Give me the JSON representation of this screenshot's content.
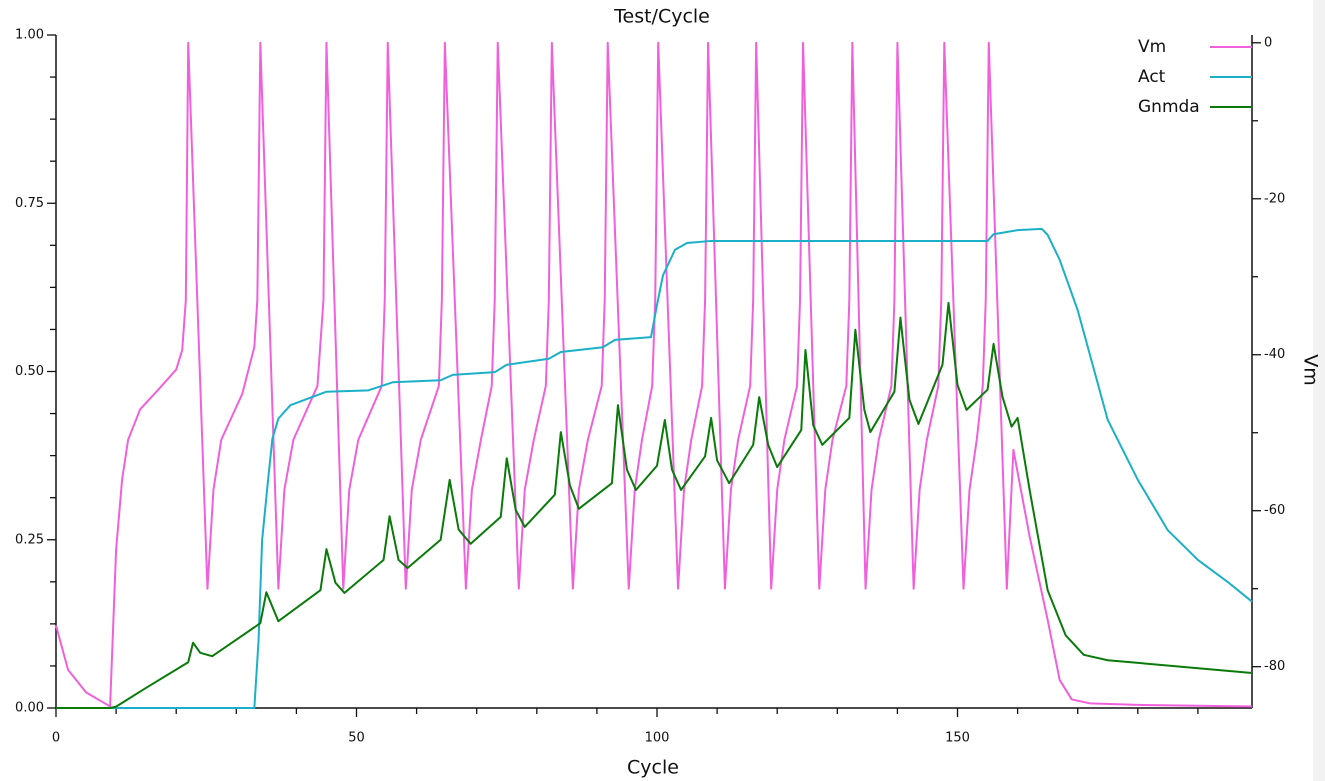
{
  "chart_data": {
    "type": "line",
    "title": "Test/Cycle",
    "x_label": "Cycle",
    "y2_label": "Vm",
    "xlim": [
      0,
      199
    ],
    "xticks": [
      0,
      50,
      100,
      150
    ],
    "xminorticks": [
      10,
      20,
      30,
      40,
      60,
      70,
      80,
      90,
      110,
      120,
      130,
      140,
      160,
      170,
      180,
      190
    ],
    "ylim": [
      0,
      1
    ],
    "yticks": [
      {
        "value": 0,
        "label": "0.00"
      },
      {
        "value": 0.25,
        "label": "0.25"
      },
      {
        "value": 0.5,
        "label": "0.50"
      },
      {
        "value": 0.75,
        "label": "0.75"
      },
      {
        "value": 1,
        "label": "1.00"
      }
    ],
    "yminorticks": [
      0.0625,
      0.125,
      0.1875,
      0.3125,
      0.375,
      0.4375,
      0.5625,
      0.625,
      0.6875,
      0.8125,
      0.875,
      0.9375
    ],
    "y2lim": [
      -85.3,
      1.0
    ],
    "y2ticks": [
      0,
      -20,
      -40,
      -60,
      -80
    ],
    "y2minorticks": [
      -10,
      -30,
      -50,
      -70
    ],
    "legend": "top-right",
    "series": [
      {
        "name": "Vm",
        "color": "#f060dc",
        "axis": "y2",
        "x": [
          0,
          2,
          5,
          9,
          10,
          11,
          12,
          14,
          17,
          20,
          21,
          21.6,
          22,
          25.2,
          26.2,
          27.5,
          31,
          33,
          33.5,
          34,
          37,
          38,
          39.5,
          43.5,
          44.5,
          45,
          47.8,
          48.8,
          50.3,
          54.2,
          54.7,
          55.2,
          58.2,
          59.2,
          60.7,
          63.7,
          64.2,
          64.7,
          68.2,
          69.2,
          70.7,
          72.5,
          73,
          73.5,
          77,
          78,
          79.5,
          81.5,
          82,
          82.5,
          86,
          87,
          88.5,
          90.8,
          91.3,
          91.8,
          95.3,
          96.3,
          97.5,
          99.2,
          99.7,
          100.2,
          103.5,
          104.5,
          105.7,
          107.5,
          108,
          108.5,
          111.3,
          112.3,
          113.5,
          115.5,
          116,
          116.5,
          119,
          120,
          121.2,
          123.3,
          123.8,
          124.3,
          127,
          128,
          129.2,
          131.5,
          132,
          132.5,
          134.7,
          135.7,
          136.9,
          139,
          139.5,
          140,
          142.7,
          143.7,
          144.9,
          146.8,
          147.3,
          147.8,
          151,
          152,
          153.2,
          154.2,
          154.7,
          155.2,
          158.2,
          159.3,
          162,
          165,
          167,
          169,
          172,
          180,
          199
        ],
        "values": [
          -74.7,
          -80.4,
          -83.3,
          -85.1,
          -65,
          -56,
          -50.9,
          -47,
          -44.5,
          -41.9,
          -39.4,
          -33,
          0,
          -70,
          -57.3,
          -50.9,
          -45,
          -39,
          -33,
          0,
          -70,
          -57.3,
          -50.9,
          -44,
          -33,
          0,
          -70,
          -57.3,
          -50.9,
          -44,
          -33,
          0,
          -70,
          -57.3,
          -50.9,
          -44,
          -33,
          0,
          -70,
          -57.3,
          -50.9,
          -44,
          -33,
          0,
          -70,
          -57.3,
          -50.9,
          -44,
          -33,
          0,
          -70,
          -57.3,
          -50.9,
          -44,
          -33,
          0,
          -70,
          -57.3,
          -50.9,
          -44,
          -33,
          0,
          -70,
          -57.3,
          -50.9,
          -44,
          -33,
          0,
          -70,
          -57.3,
          -50.9,
          -44,
          -33,
          0,
          -70,
          -57.3,
          -50.9,
          -44,
          -33,
          0,
          -70,
          -57.3,
          -50.9,
          -44,
          -33,
          0,
          -70,
          -57.3,
          -50.9,
          -44,
          -33,
          0,
          -70,
          -57.3,
          -50.9,
          -44,
          -33,
          0,
          -70,
          -57.3,
          -50.9,
          -44,
          -33,
          0,
          -70,
          -52.2,
          -63.3,
          -74,
          -81.7,
          -84.2,
          -84.7,
          -84.9,
          -85.1
        ]
      },
      {
        "name": "Act",
        "color": "#1ab0c8",
        "x": [
          0,
          33,
          33.7,
          34.3,
          35.3,
          36,
          37,
          39,
          42,
          45,
          52,
          54,
          56,
          64,
          66,
          73,
          75,
          82,
          84,
          91,
          93,
          99,
          100,
          101,
          103,
          105,
          109,
          155,
          156,
          160,
          164,
          165,
          167,
          170,
          175,
          180,
          185,
          190,
          195,
          199
        ],
        "values": [
          0,
          0,
          0.1,
          0.25,
          0.34,
          0.4,
          0.43,
          0.45,
          0.46,
          0.47,
          0.472,
          0.478,
          0.484,
          0.487,
          0.495,
          0.499,
          0.51,
          0.519,
          0.529,
          0.536,
          0.547,
          0.551,
          0.599,
          0.643,
          0.681,
          0.691,
          0.694,
          0.694,
          0.704,
          0.71,
          0.712,
          0.703,
          0.666,
          0.591,
          0.428,
          0.339,
          0.264,
          0.22,
          0.187,
          0.158
        ]
      },
      {
        "name": "Gnmda",
        "color": "#0a7a0a",
        "x": [
          0,
          9,
          10,
          15,
          22,
          22.8,
          24,
          26,
          34,
          35,
          37,
          44,
          45,
          46.5,
          48,
          54.5,
          55.5,
          57,
          58.5,
          64,
          65.5,
          67,
          69,
          74,
          75,
          76.5,
          78,
          83,
          84,
          85.5,
          87,
          92.5,
          93.5,
          95,
          96.5,
          100,
          101.3,
          102.5,
          104,
          108,
          109,
          110,
          112,
          116,
          117,
          118.5,
          120,
          124,
          124.7,
          126,
          127.5,
          132,
          133,
          134.5,
          135.5,
          139.5,
          140.5,
          142,
          143.5,
          147.5,
          148.5,
          150,
          151.5,
          155,
          156,
          157.5,
          159,
          160,
          162,
          165,
          168,
          171,
          175,
          199
        ],
        "values": [
          0,
          0,
          0.002,
          0.03,
          0.068,
          0.097,
          0.082,
          0.077,
          0.126,
          0.172,
          0.129,
          0.175,
          0.236,
          0.186,
          0.171,
          0.22,
          0.285,
          0.22,
          0.208,
          0.25,
          0.339,
          0.265,
          0.244,
          0.284,
          0.371,
          0.294,
          0.269,
          0.317,
          0.41,
          0.331,
          0.296,
          0.334,
          0.45,
          0.354,
          0.324,
          0.36,
          0.428,
          0.354,
          0.324,
          0.374,
          0.431,
          0.368,
          0.334,
          0.391,
          0.462,
          0.391,
          0.358,
          0.413,
          0.532,
          0.42,
          0.391,
          0.431,
          0.562,
          0.443,
          0.41,
          0.47,
          0.58,
          0.458,
          0.422,
          0.51,
          0.602,
          0.48,
          0.443,
          0.473,
          0.541,
          0.462,
          0.418,
          0.431,
          0.324,
          0.175,
          0.108,
          0.079,
          0.071,
          0.052
        ]
      }
    ]
  }
}
